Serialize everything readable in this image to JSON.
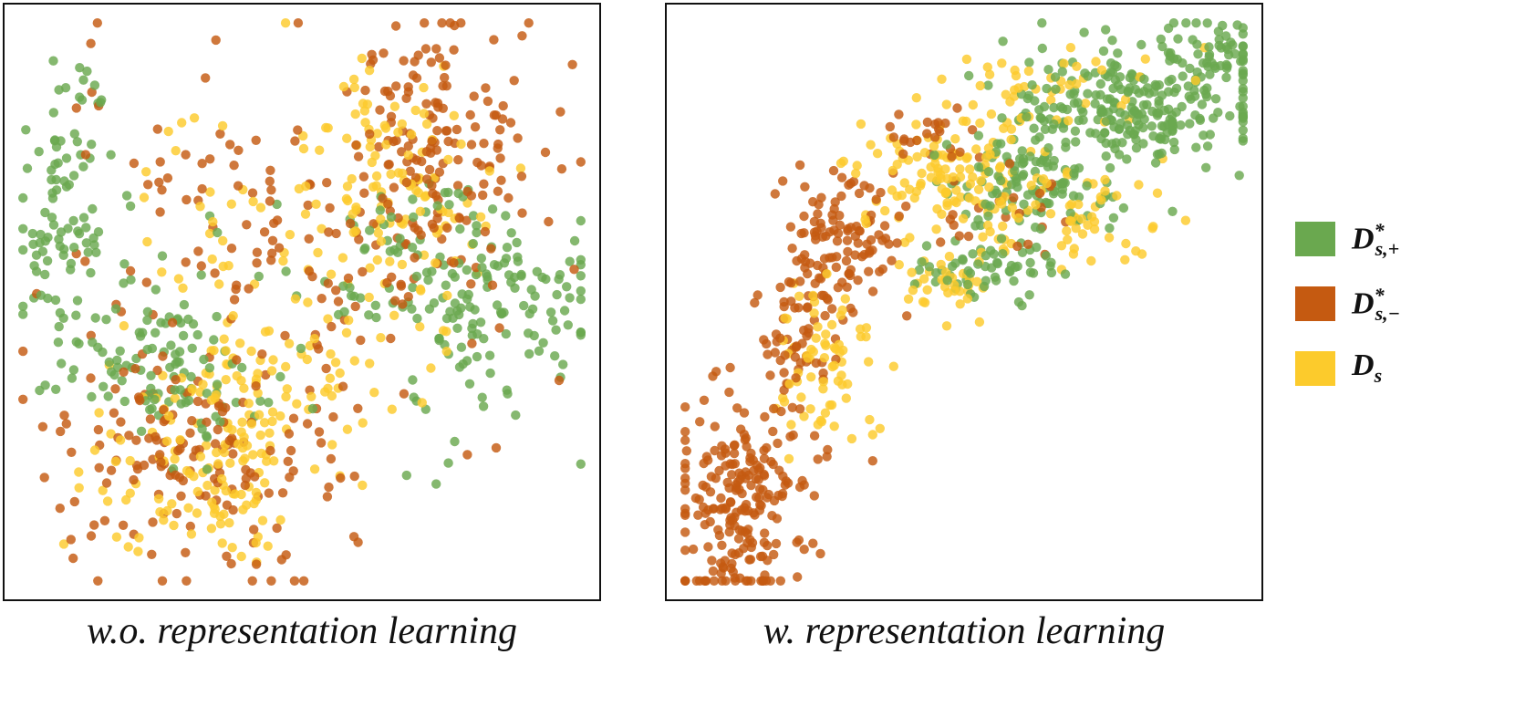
{
  "colors": {
    "pos": "#6aa84f",
    "neg": "#c55a11",
    "src": "#fccb2c"
  },
  "legend": [
    {
      "key": "pos",
      "base": "D",
      "sub": "s,+",
      "sup": "*"
    },
    {
      "key": "neg",
      "base": "D",
      "sub": "s,−",
      "sup": "*"
    },
    {
      "key": "src",
      "base": "D",
      "sub": "s",
      "sup": ""
    }
  ],
  "captions": {
    "left": "w.o. representation learning",
    "right": "w. representation learning"
  },
  "chart_data": [
    {
      "type": "scatter",
      "title": "w.o. representation learning",
      "xlim": [
        0,
        1
      ],
      "ylim": [
        0,
        1
      ],
      "grid": false,
      "series": [
        {
          "key": "pos",
          "name": "D*s,+",
          "clusters": [
            {
              "cx": 0.08,
              "cy": 0.66,
              "sx": 0.045,
              "sy": 0.13,
              "n": 95
            },
            {
              "cx": 0.26,
              "cy": 0.4,
              "sx": 0.09,
              "sy": 0.08,
              "n": 110
            },
            {
              "cx": 0.8,
              "cy": 0.48,
              "sx": 0.11,
              "sy": 0.1,
              "n": 130
            },
            {
              "cx": 0.68,
              "cy": 0.58,
              "sx": 0.12,
              "sy": 0.07,
              "n": 55
            }
          ]
        },
        {
          "key": "neg",
          "name": "D*s,−",
          "clusters": [
            {
              "cx": 0.72,
              "cy": 0.78,
              "sx": 0.1,
              "sy": 0.12,
              "n": 150
            },
            {
              "cx": 0.3,
              "cy": 0.22,
              "sx": 0.14,
              "sy": 0.09,
              "n": 140
            },
            {
              "cx": 0.48,
              "cy": 0.55,
              "sx": 0.22,
              "sy": 0.18,
              "n": 130
            },
            {
              "cx": 0.36,
              "cy": 0.72,
              "sx": 0.08,
              "sy": 0.05,
              "n": 20
            }
          ]
        },
        {
          "key": "src",
          "name": "Ds",
          "clusters": [
            {
              "cx": 0.66,
              "cy": 0.7,
              "sx": 0.09,
              "sy": 0.12,
              "n": 100
            },
            {
              "cx": 0.4,
              "cy": 0.3,
              "sx": 0.1,
              "sy": 0.1,
              "n": 120
            },
            {
              "cx": 0.3,
              "cy": 0.16,
              "sx": 0.09,
              "sy": 0.06,
              "n": 50
            },
            {
              "cx": 0.52,
              "cy": 0.55,
              "sx": 0.16,
              "sy": 0.14,
              "n": 70
            }
          ]
        }
      ]
    },
    {
      "type": "scatter",
      "title": "w. representation learning",
      "xlim": [
        0,
        1
      ],
      "ylim": [
        0,
        1
      ],
      "grid": false,
      "series": [
        {
          "key": "pos",
          "name": "D*s,+",
          "clusters": [
            {
              "cx": 0.8,
              "cy": 0.84,
              "sx": 0.11,
              "sy": 0.055,
              "n": 260
            },
            {
              "cx": 0.62,
              "cy": 0.7,
              "sx": 0.09,
              "sy": 0.05,
              "n": 110
            },
            {
              "cx": 0.93,
              "cy": 0.94,
              "sx": 0.04,
              "sy": 0.03,
              "n": 45
            },
            {
              "cx": 0.54,
              "cy": 0.56,
              "sx": 0.06,
              "sy": 0.03,
              "n": 60
            }
          ]
        },
        {
          "key": "neg",
          "name": "D*s,−",
          "clusters": [
            {
              "cx": 0.11,
              "cy": 0.14,
              "sx": 0.06,
              "sy": 0.1,
              "n": 220
            },
            {
              "cx": 0.28,
              "cy": 0.6,
              "sx": 0.05,
              "sy": 0.06,
              "n": 110
            },
            {
              "cx": 0.21,
              "cy": 0.44,
              "sx": 0.03,
              "sy": 0.07,
              "n": 55
            },
            {
              "cx": 0.43,
              "cy": 0.79,
              "sx": 0.04,
              "sy": 0.03,
              "n": 25
            },
            {
              "cx": 0.56,
              "cy": 0.66,
              "sx": 0.08,
              "sy": 0.05,
              "n": 25
            }
          ]
        },
        {
          "key": "src",
          "name": "Ds",
          "clusters": [
            {
              "cx": 0.45,
              "cy": 0.73,
              "sx": 0.07,
              "sy": 0.05,
              "n": 95
            },
            {
              "cx": 0.26,
              "cy": 0.39,
              "sx": 0.05,
              "sy": 0.07,
              "n": 70
            },
            {
              "cx": 0.64,
              "cy": 0.66,
              "sx": 0.12,
              "sy": 0.06,
              "n": 85
            },
            {
              "cx": 0.65,
              "cy": 0.88,
              "sx": 0.12,
              "sy": 0.035,
              "n": 45
            },
            {
              "cx": 0.49,
              "cy": 0.54,
              "sx": 0.06,
              "sy": 0.03,
              "n": 35
            }
          ]
        }
      ]
    }
  ]
}
